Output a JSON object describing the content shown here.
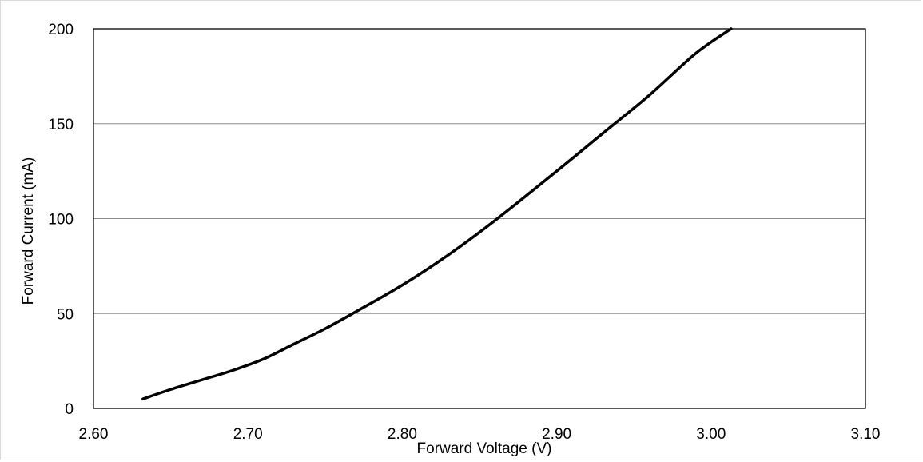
{
  "chart_data": {
    "type": "line",
    "title": "",
    "xlabel": "Forward Voltage (V)",
    "ylabel": "Forward Current (mA)",
    "xlim": [
      2.6,
      3.1
    ],
    "ylim": [
      0,
      200
    ],
    "x_ticks": [
      "2.60",
      "2.70",
      "2.80",
      "2.90",
      "3.00",
      "3.10"
    ],
    "y_ticks": [
      "0",
      "50",
      "100",
      "150",
      "200"
    ],
    "grid": "horizontal",
    "legend": "none",
    "series": [
      {
        "color": "#000000",
        "x": [
          2.632,
          2.65,
          2.67,
          2.69,
          2.71,
          2.73,
          2.75,
          2.77,
          2.8,
          2.83,
          2.86,
          2.9,
          2.93,
          2.96,
          2.99,
          3.013
        ],
        "y": [
          5,
          10,
          15,
          20,
          26,
          34,
          42,
          51,
          65,
          81,
          99,
          125,
          145,
          165,
          187,
          200
        ]
      }
    ]
  }
}
